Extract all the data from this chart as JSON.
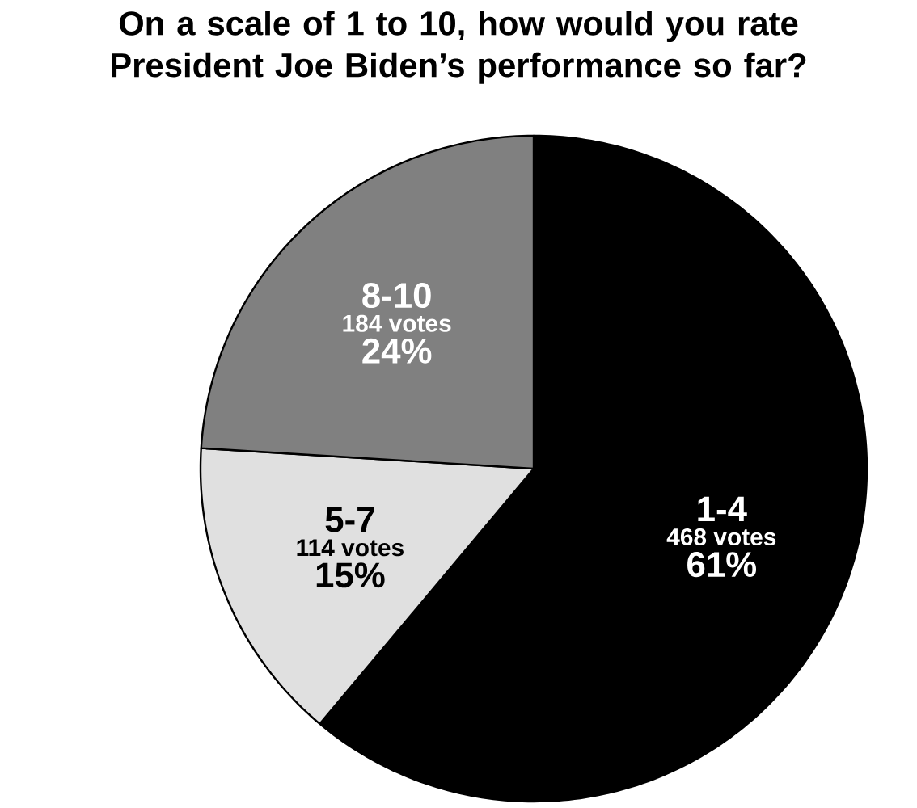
{
  "chart_data": {
    "type": "pie",
    "title": "On a scale of 1 to 10, how would you rate President Joe Biden’s performance so far?",
    "categories": [
      "1-4",
      "5-7",
      "8-10"
    ],
    "values": [
      468,
      114,
      184
    ],
    "value_labels": [
      "468 votes",
      "114 votes",
      "184 votes"
    ],
    "colors": [
      "#000000",
      "#e0e0e0",
      "#808080"
    ],
    "annotations": [
      "61%",
      "15%",
      "24%"
    ]
  }
}
